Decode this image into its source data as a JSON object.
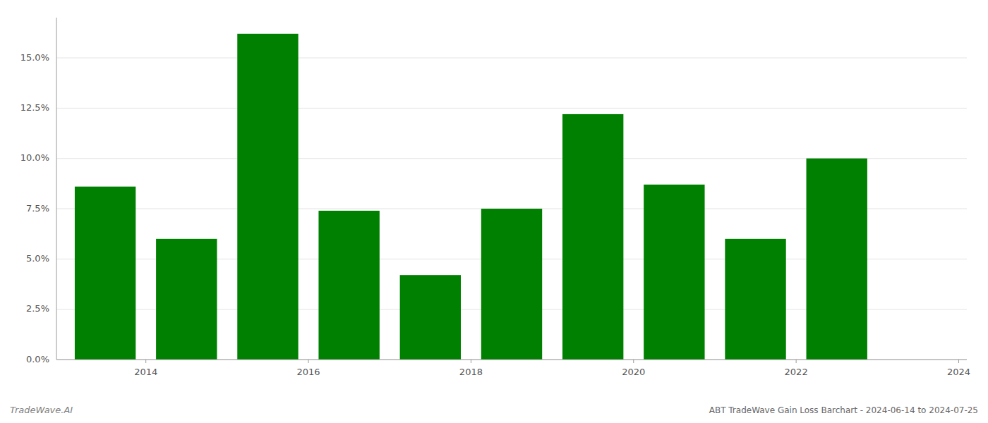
{
  "chart_data": {
    "type": "bar",
    "title": "ABT TradeWave Gain Loss Barchart - 2024-06-14 to 2024-07-25",
    "annotations": [
      "TradeWave.AI"
    ],
    "x": [
      2014,
      2015,
      2016,
      2017,
      2018,
      2019,
      2020,
      2021,
      2022,
      2023
    ],
    "values": [
      0.086,
      0.06,
      0.162,
      0.074,
      0.042,
      0.075,
      0.122,
      0.087,
      0.06,
      0.1
    ],
    "color": "#008000",
    "xlim": [
      2013.4,
      2024.6
    ],
    "xticks": [
      {
        "value": 2014.5,
        "label": "2014"
      },
      {
        "value": 2016.5,
        "label": "2016"
      },
      {
        "value": 2018.5,
        "label": "2018"
      },
      {
        "value": 2020.5,
        "label": "2020"
      },
      {
        "value": 2022.5,
        "label": "2022"
      },
      {
        "value": 2024.5,
        "label": "2024"
      }
    ],
    "ylim": [
      0,
      0.17
    ],
    "yticks": [
      {
        "value": 0.0,
        "label": "0.0%"
      },
      {
        "value": 0.025,
        "label": "2.5%"
      },
      {
        "value": 0.05,
        "label": "5.0%"
      },
      {
        "value": 0.075,
        "label": "7.5%"
      },
      {
        "value": 0.1,
        "label": "10.0%"
      },
      {
        "value": 0.125,
        "label": "12.5%"
      },
      {
        "value": 0.15,
        "label": "15.0%"
      }
    ],
    "grid": true
  }
}
